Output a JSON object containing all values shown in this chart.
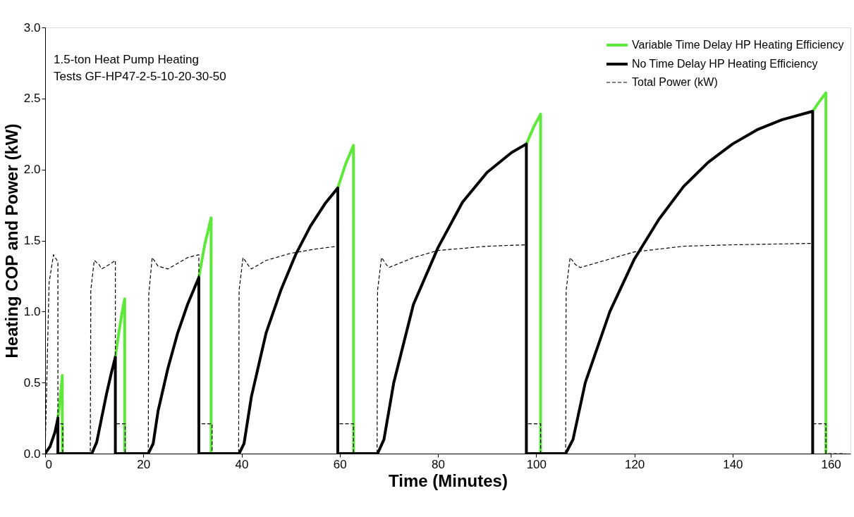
{
  "chart_data": {
    "type": "line",
    "xlabel": "Time (Minutes)",
    "ylabel": "Heating COP and Power (kW)",
    "annotations": [
      "1.5-ton Heat Pump Heating",
      "Tests GF-HP47-2-5-10-20-30-50"
    ],
    "xlim": [
      0,
      164
    ],
    "xticks": [
      0,
      20,
      40,
      60,
      80,
      100,
      120,
      140,
      160
    ],
    "ylim": [
      0,
      3
    ],
    "yticks": [
      {
        "value": 0,
        "label": "0.0"
      },
      0.5,
      {
        "value": 1,
        "label": "1.0"
      },
      1.5,
      {
        "value": 2,
        "label": "2.0"
      },
      2.5,
      {
        "value": 3,
        "label": "3.0"
      }
    ],
    "grid": false,
    "legend": "top right",
    "marker": "none",
    "series": [
      {
        "name": "Variable Time Delay HP Heating Efficiency",
        "color": "#5ee83a",
        "line_style": "solid",
        "x": [
          2.6,
          3.1,
          3.5,
          3.5,
          5,
          14.3,
          15,
          15.7,
          16.2,
          16.2,
          20,
          31.3,
          32.5,
          33.8,
          33.8,
          36,
          59.6,
          61.2,
          62.8,
          62.8,
          65,
          98,
          99.5,
          100.9,
          100.9,
          103,
          156.3,
          157.7,
          159,
          159
        ],
        "values": [
          0.25,
          0.4,
          0.55,
          0,
          null,
          0.68,
          0.85,
          1.0,
          1.09,
          0,
          null,
          1.24,
          1.47,
          1.66,
          0,
          null,
          1.87,
          2.04,
          2.17,
          0,
          null,
          2.18,
          2.3,
          2.39,
          0,
          null,
          2.41,
          2.48,
          2.54,
          0
        ]
      },
      {
        "name": "No Time Delay HP Heating Efficiency",
        "color": "#000000",
        "line_style": "solid",
        "x": [
          0,
          1,
          2,
          2.6,
          2.6,
          9.5,
          10.5,
          11.5,
          12.5,
          13.5,
          14.3,
          14.3,
          21,
          22,
          23,
          25,
          27,
          29,
          31.3,
          31.3,
          39.5,
          40.5,
          42,
          45,
          48,
          51,
          54,
          57,
          59.6,
          59.6,
          67.7,
          69,
          71,
          75,
          80,
          85,
          90,
          95,
          98,
          98,
          106,
          107.5,
          110,
          115,
          120,
          125,
          130,
          135,
          140,
          145,
          150,
          156.3,
          156.3
        ],
        "values": [
          0,
          0.05,
          0.15,
          0.25,
          0,
          0,
          0.08,
          0.25,
          0.42,
          0.57,
          0.68,
          0,
          0,
          0.07,
          0.3,
          0.6,
          0.85,
          1.05,
          1.24,
          0,
          0,
          0.07,
          0.4,
          0.85,
          1.15,
          1.4,
          1.6,
          1.76,
          1.87,
          0,
          0,
          0.1,
          0.5,
          1.05,
          1.45,
          1.77,
          1.98,
          2.12,
          2.18,
          0,
          0,
          0.1,
          0.5,
          1.0,
          1.37,
          1.65,
          1.88,
          2.05,
          2.18,
          2.28,
          2.35,
          2.41,
          0
        ]
      },
      {
        "name": "Total Power (kW)",
        "color": "#000000",
        "line_style": "dashed",
        "x": [
          0,
          0.8,
          1.7,
          2.6,
          2.6,
          3.6,
          3.6,
          9.2,
          9.3,
          10,
          11,
          11.5,
          13,
          14.3,
          14.3,
          16.3,
          16.3,
          21,
          21.1,
          21.8,
          23,
          25,
          27,
          29,
          31.3,
          31.3,
          34,
          34,
          39.4,
          39.5,
          40.3,
          41.5,
          42,
          45,
          50,
          55,
          59.6,
          59.6,
          62.8,
          62.8,
          67.6,
          67.7,
          68.5,
          69.5,
          70,
          75,
          80,
          90,
          98,
          98,
          100.9,
          100.9,
          106,
          106.1,
          106.9,
          108,
          109,
          115,
          120,
          130,
          140,
          156.3,
          156.3,
          159,
          159,
          163
        ],
        "values": [
          0,
          1.2,
          1.4,
          1.35,
          0.21,
          0.21,
          0,
          0,
          1.15,
          1.36,
          1.33,
          1.3,
          1.33,
          1.36,
          0.21,
          0.21,
          0,
          0,
          1.12,
          1.38,
          1.32,
          1.3,
          1.34,
          1.38,
          1.4,
          0.21,
          0.21,
          0,
          0,
          1.15,
          1.38,
          1.32,
          1.3,
          1.36,
          1.41,
          1.44,
          1.46,
          0.21,
          0.21,
          0,
          0,
          1.15,
          1.38,
          1.33,
          1.31,
          1.38,
          1.43,
          1.46,
          1.47,
          0.21,
          0.21,
          0,
          0,
          1.15,
          1.38,
          1.33,
          1.31,
          1.37,
          1.42,
          1.46,
          1.47,
          1.48,
          0.21,
          0.21,
          0,
          0
        ]
      }
    ]
  }
}
